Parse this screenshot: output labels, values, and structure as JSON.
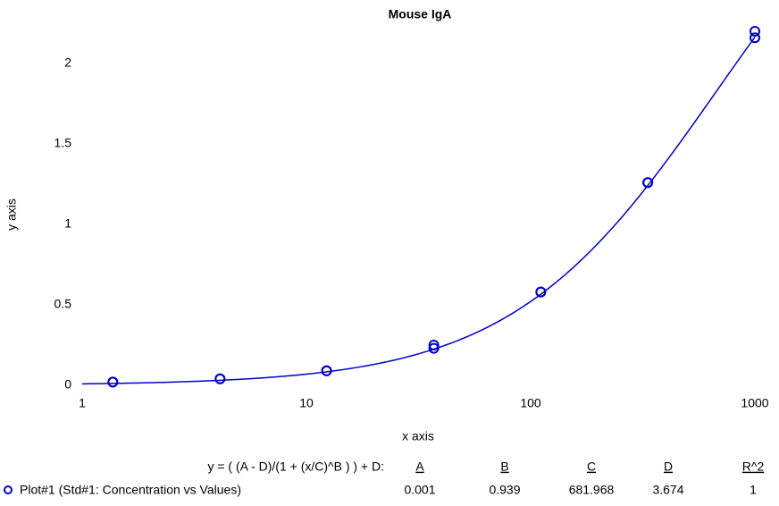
{
  "chart_data": {
    "type": "scatter",
    "title": "Mouse IgA",
    "x_label": "x axis",
    "y_label": "y axis",
    "log_x": true,
    "xlim": [
      1,
      1000
    ],
    "xticks": [
      1,
      10,
      100,
      1000
    ],
    "ylim": [
      0,
      2.2
    ],
    "yticks": [
      0,
      0.5,
      1,
      1.5,
      2
    ],
    "series": [
      {
        "name": "Plot#1 (Std#1: Concentration vs Values)",
        "color": "#0000cc",
        "x": [
          1.37,
          1.37,
          4.12,
          4.12,
          12.3,
          12.3,
          37,
          37,
          111,
          111,
          333,
          333,
          1000,
          1000
        ],
        "values": [
          0.02,
          0.02,
          0.04,
          0.04,
          0.09,
          0.09,
          0.23,
          0.25,
          0.58,
          0.58,
          1.26,
          1.26,
          2.16,
          2.2
        ]
      }
    ],
    "fit": {
      "equation": "y = ( (A - D)/(1 + (x/C)^B ) ) + D:",
      "columns": [
        "A",
        "B",
        "C",
        "D",
        "R^2"
      ],
      "values": [
        0.001,
        0.939,
        681.968,
        3.674,
        1
      ]
    }
  }
}
